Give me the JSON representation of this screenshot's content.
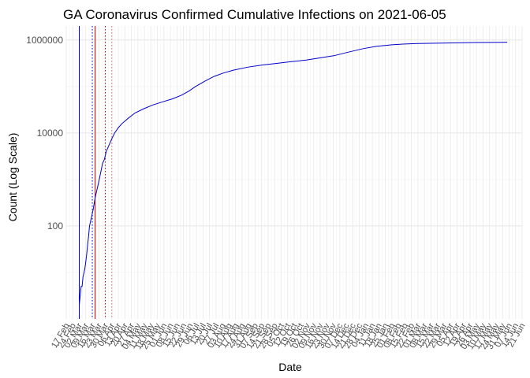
{
  "chart_data": {
    "type": "line",
    "title": "GA Coronavirus Confirmed Cumulative Infections on 2021-06-05",
    "xlabel": "Date",
    "ylabel": "Count (Log Scale)",
    "y_scale": "log10",
    "ylim": [
      1,
      2000000
    ],
    "y_ticks": [
      100,
      10000,
      1000000
    ],
    "y_tick_labels": [
      "100",
      "10000",
      "1000000"
    ],
    "x_range": [
      "2020-02-17",
      "2021-06-21"
    ],
    "grid": true,
    "x_tick_labels": [
      {
        "date": "2020-02-17",
        "label": "17 Feb"
      },
      {
        "date": "2020-02-24",
        "label": "24 Feb"
      },
      {
        "date": "2020-03-02",
        "label": "02 Mar"
      },
      {
        "date": "2020-03-09",
        "label": "09 Mar"
      },
      {
        "date": "2020-03-16",
        "label": "16 Mar"
      },
      {
        "date": "2020-03-23",
        "label": "23 Mar"
      },
      {
        "date": "2020-03-30",
        "label": "30 Mar"
      },
      {
        "date": "2020-04-06",
        "label": "06 Apr"
      },
      {
        "date": "2020-04-13",
        "label": "13 Apr"
      },
      {
        "date": "2020-04-20",
        "label": "20 Apr"
      },
      {
        "date": "2020-04-27",
        "label": "27 Apr"
      },
      {
        "date": "2020-05-04",
        "label": "04 May"
      },
      {
        "date": "2020-05-11",
        "label": "11 May"
      },
      {
        "date": "2020-05-18",
        "label": "18 May"
      },
      {
        "date": "2020-05-25",
        "label": "25 May"
      },
      {
        "date": "2020-06-01",
        "label": "01 Jun"
      },
      {
        "date": "2020-06-08",
        "label": "08 Jun"
      },
      {
        "date": "2020-06-15",
        "label": "15 Jun"
      },
      {
        "date": "2020-06-22",
        "label": "22 Jun"
      },
      {
        "date": "2020-06-29",
        "label": "29 Jun"
      },
      {
        "date": "2020-07-06",
        "label": "06 Jul"
      },
      {
        "date": "2020-07-13",
        "label": "13 Jul"
      },
      {
        "date": "2020-07-20",
        "label": "20 Jul"
      },
      {
        "date": "2020-07-27",
        "label": "27 Jul"
      },
      {
        "date": "2020-08-03",
        "label": "03 Aug"
      },
      {
        "date": "2020-08-10",
        "label": "10 Aug"
      },
      {
        "date": "2020-08-17",
        "label": "17 Aug"
      },
      {
        "date": "2020-08-24",
        "label": "24 Aug"
      },
      {
        "date": "2020-08-31",
        "label": "31 Aug"
      },
      {
        "date": "2020-09-07",
        "label": "07 Sep"
      },
      {
        "date": "2020-09-14",
        "label": "14 Sep"
      },
      {
        "date": "2020-09-21",
        "label": "21 Sep"
      },
      {
        "date": "2020-09-28",
        "label": "28 Sep"
      },
      {
        "date": "2020-10-05",
        "label": "05 Oct"
      },
      {
        "date": "2020-10-12",
        "label": "12 Oct"
      },
      {
        "date": "2020-10-19",
        "label": "19 Oct"
      },
      {
        "date": "2020-10-26",
        "label": "26 Oct"
      },
      {
        "date": "2020-11-02",
        "label": "02 Nov"
      },
      {
        "date": "2020-11-09",
        "label": "09 Nov"
      },
      {
        "date": "2020-11-16",
        "label": "16 Nov"
      },
      {
        "date": "2020-11-23",
        "label": "23 Nov"
      },
      {
        "date": "2020-11-30",
        "label": "30 Nov"
      },
      {
        "date": "2020-12-07",
        "label": "07 Dec"
      },
      {
        "date": "2020-12-14",
        "label": "14 Dec"
      },
      {
        "date": "2020-12-21",
        "label": "21 Dec"
      },
      {
        "date": "2020-12-28",
        "label": "28 Dec"
      },
      {
        "date": "2021-01-04",
        "label": "04 Jan"
      },
      {
        "date": "2021-01-11",
        "label": "11 Jan"
      },
      {
        "date": "2021-01-18",
        "label": "18 Jan"
      },
      {
        "date": "2021-01-25",
        "label": "25 Jan"
      },
      {
        "date": "2021-02-01",
        "label": "01 Feb"
      },
      {
        "date": "2021-02-08",
        "label": "08 Feb"
      },
      {
        "date": "2021-02-15",
        "label": "15 Feb"
      },
      {
        "date": "2021-02-22",
        "label": "22 Feb"
      },
      {
        "date": "2021-03-01",
        "label": "01 Mar"
      },
      {
        "date": "2021-03-08",
        "label": "08 Mar"
      },
      {
        "date": "2021-03-15",
        "label": "15 Mar"
      },
      {
        "date": "2021-03-22",
        "label": "22 Mar"
      },
      {
        "date": "2021-03-29",
        "label": "29 Mar"
      },
      {
        "date": "2021-04-05",
        "label": "05 Apr"
      },
      {
        "date": "2021-04-12",
        "label": "12 Apr"
      },
      {
        "date": "2021-04-19",
        "label": "19 Apr"
      },
      {
        "date": "2021-04-26",
        "label": "26 Apr"
      },
      {
        "date": "2021-05-03",
        "label": "03 May"
      },
      {
        "date": "2021-05-10",
        "label": "10 May"
      },
      {
        "date": "2021-05-17",
        "label": "17 May"
      },
      {
        "date": "2021-05-24",
        "label": "24 May"
      },
      {
        "date": "2021-05-31",
        "label": "31 May"
      },
      {
        "date": "2021-06-07",
        "label": "07 Jun"
      },
      {
        "date": "2021-06-14",
        "label": "14 Jun"
      },
      {
        "date": "2021-06-21",
        "label": "21 Jun"
      }
    ],
    "series": [
      {
        "color": "#0000cc",
        "points": [
          {
            "x": "2020-03-02",
            "y": 2
          },
          {
            "x": "2020-03-04",
            "y": 5
          },
          {
            "x": "2020-03-05",
            "y": 5
          },
          {
            "x": "2020-03-06",
            "y": 8
          },
          {
            "x": "2020-03-08",
            "y": 12
          },
          {
            "x": "2020-03-09",
            "y": 17
          },
          {
            "x": "2020-03-10",
            "y": 25
          },
          {
            "x": "2020-03-11",
            "y": 40
          },
          {
            "x": "2020-03-12",
            "y": 60
          },
          {
            "x": "2020-03-13",
            "y": 100
          },
          {
            "x": "2020-03-15",
            "y": 150
          },
          {
            "x": "2020-03-17",
            "y": 230
          },
          {
            "x": "2020-03-19",
            "y": 400
          },
          {
            "x": "2020-03-21",
            "y": 600
          },
          {
            "x": "2020-03-23",
            "y": 900
          },
          {
            "x": "2020-03-25",
            "y": 1400
          },
          {
            "x": "2020-03-27",
            "y": 2200
          },
          {
            "x": "2020-03-29",
            "y": 2700
          },
          {
            "x": "2020-03-31",
            "y": 4000
          },
          {
            "x": "2020-04-03",
            "y": 5500
          },
          {
            "x": "2020-04-06",
            "y": 7500
          },
          {
            "x": "2020-04-09",
            "y": 10000
          },
          {
            "x": "2020-04-13",
            "y": 13000
          },
          {
            "x": "2020-04-17",
            "y": 16000
          },
          {
            "x": "2020-04-24",
            "y": 21000
          },
          {
            "x": "2020-05-01",
            "y": 27000
          },
          {
            "x": "2020-05-10",
            "y": 33000
          },
          {
            "x": "2020-05-20",
            "y": 40000
          },
          {
            "x": "2020-05-31",
            "y": 47000
          },
          {
            "x": "2020-06-10",
            "y": 54000
          },
          {
            "x": "2020-06-20",
            "y": 65000
          },
          {
            "x": "2020-06-28",
            "y": 80000
          },
          {
            "x": "2020-07-05",
            "y": 100000
          },
          {
            "x": "2020-07-15",
            "y": 130000
          },
          {
            "x": "2020-07-25",
            "y": 165000
          },
          {
            "x": "2020-08-04",
            "y": 195000
          },
          {
            "x": "2020-08-15",
            "y": 225000
          },
          {
            "x": "2020-08-30",
            "y": 260000
          },
          {
            "x": "2020-09-15",
            "y": 290000
          },
          {
            "x": "2020-10-01",
            "y": 315000
          },
          {
            "x": "2020-10-15",
            "y": 340000
          },
          {
            "x": "2020-11-01",
            "y": 370000
          },
          {
            "x": "2020-11-15",
            "y": 410000
          },
          {
            "x": "2020-12-01",
            "y": 460000
          },
          {
            "x": "2020-12-15",
            "y": 540000
          },
          {
            "x": "2021-01-01",
            "y": 650000
          },
          {
            "x": "2021-01-15",
            "y": 730000
          },
          {
            "x": "2021-02-01",
            "y": 790000
          },
          {
            "x": "2021-02-15",
            "y": 820000
          },
          {
            "x": "2021-03-01",
            "y": 840000
          },
          {
            "x": "2021-04-01",
            "y": 860000
          },
          {
            "x": "2021-05-01",
            "y": 880000
          },
          {
            "x": "2021-06-05",
            "y": 895000
          }
        ]
      }
    ],
    "vertical_lines": [
      {
        "x": "2020-03-02",
        "color": "#0000cc",
        "style": "solid"
      },
      {
        "x": "2020-03-16",
        "color": "#0000cc",
        "style": "dotted"
      },
      {
        "x": "2020-03-19",
        "color": "#cc0000",
        "style": "solid"
      },
      {
        "x": "2020-03-30",
        "color": "#cc0000",
        "style": "dotted"
      },
      {
        "x": "2020-04-06",
        "color": "#e06666",
        "style": "dotted"
      }
    ]
  }
}
